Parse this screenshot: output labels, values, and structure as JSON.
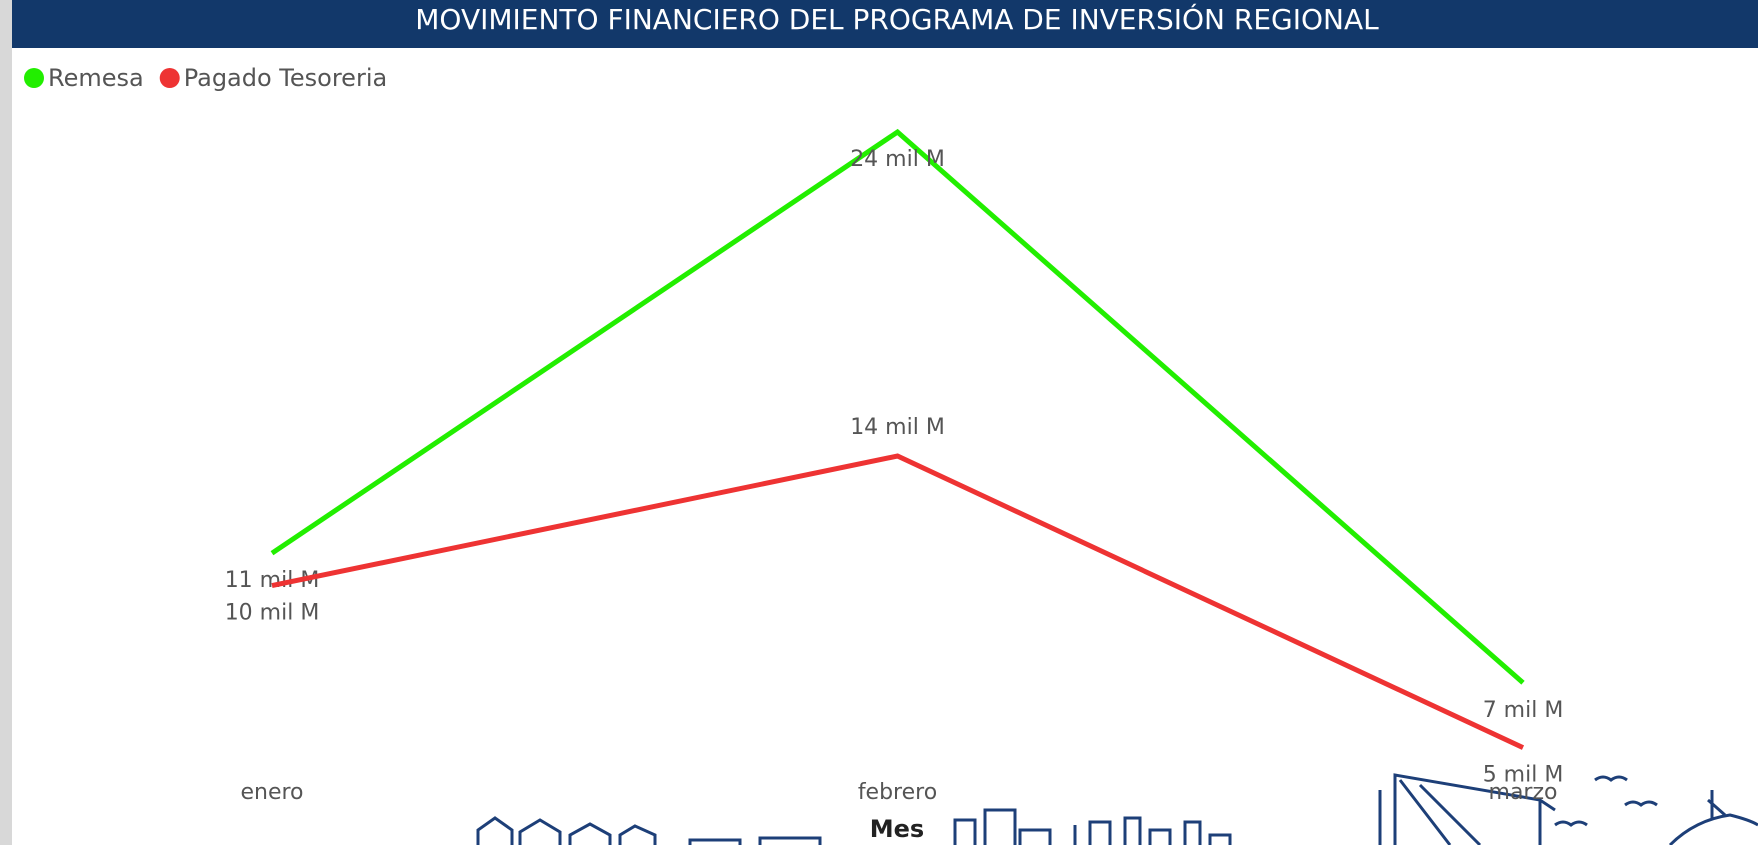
{
  "chart_data": {
    "type": "line",
    "title": "MOVIMIENTO FINANCIERO DEL PROGRAMA DE INVERSIÓN REGIONAL",
    "x_label": "Mes",
    "categories": [
      "enero",
      "febrero",
      "marzo"
    ],
    "series": [
      {
        "name": "Remesa",
        "color": "#22ee00",
        "values": [
          11,
          24,
          7
        ],
        "value_labels": [
          "11 mil M",
          "24 mil M",
          "7 mil M"
        ]
      },
      {
        "name": "Pagado Tesoreria",
        "color": "#ee3333",
        "values": [
          10,
          14,
          5
        ],
        "value_labels": [
          "10 mil M",
          "14 mil M",
          "5 mil M"
        ]
      }
    ],
    "legend": "top-left"
  }
}
